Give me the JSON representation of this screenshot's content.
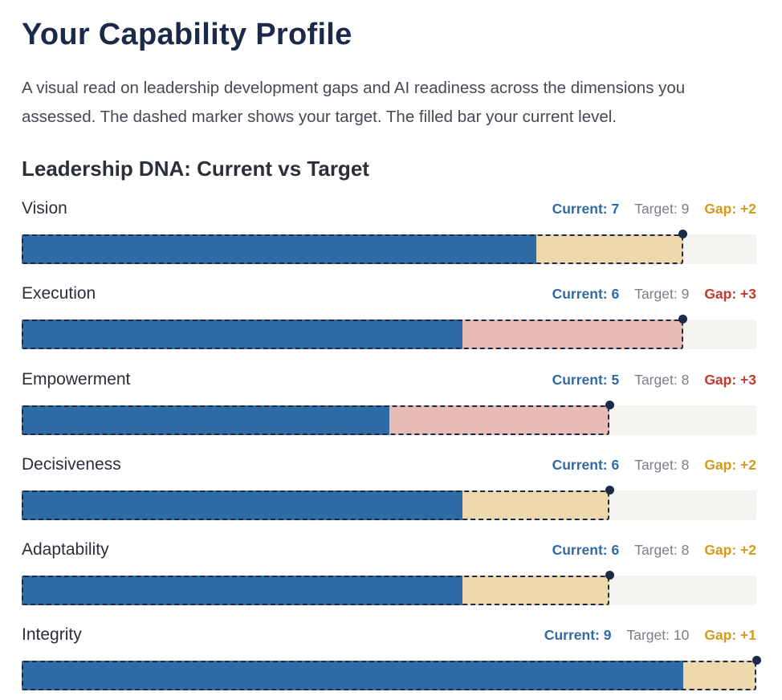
{
  "page": {
    "title": "Your Capability Profile",
    "intro": "A visual read on leadership development gaps and AI readiness across the dimensions you assessed. The dashed marker shows your target. The filled bar your current level.",
    "section_title": "Leadership DNA: Current vs Target"
  },
  "colors": {
    "current": "#2f6ca6",
    "gap_small": "#eed9ae",
    "gap_large": "#e7bcb6",
    "gap_text_small": "#d49a1c",
    "gap_text_large": "#c2392f",
    "target_marker": "#1c2a4a",
    "track": "#f5f4f0"
  },
  "chart_data": {
    "type": "bar",
    "title": "Leadership DNA: Current vs Target",
    "xlim": [
      0,
      10
    ],
    "rows": [
      {
        "name": "Vision",
        "current": 7,
        "target": 9,
        "gap": 2,
        "current_label": "Current: 7",
        "target_label": "Target: 9",
        "gap_label": "Gap: +2"
      },
      {
        "name": "Execution",
        "current": 6,
        "target": 9,
        "gap": 3,
        "current_label": "Current: 6",
        "target_label": "Target: 9",
        "gap_label": "Gap: +3"
      },
      {
        "name": "Empowerment",
        "current": 5,
        "target": 8,
        "gap": 3,
        "current_label": "Current: 5",
        "target_label": "Target: 8",
        "gap_label": "Gap: +3"
      },
      {
        "name": "Decisiveness",
        "current": 6,
        "target": 8,
        "gap": 2,
        "current_label": "Current: 6",
        "target_label": "Target: 8",
        "gap_label": "Gap: +2"
      },
      {
        "name": "Adaptability",
        "current": 6,
        "target": 8,
        "gap": 2,
        "current_label": "Current: 6",
        "target_label": "Target: 8",
        "gap_label": "Gap: +2"
      },
      {
        "name": "Integrity",
        "current": 9,
        "target": 10,
        "gap": 1,
        "current_label": "Current: 9",
        "target_label": "Target: 10",
        "gap_label": "Gap: +1"
      }
    ]
  }
}
